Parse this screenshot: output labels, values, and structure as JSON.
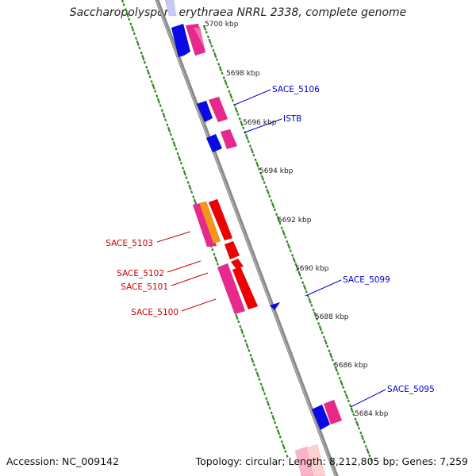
{
  "title": "Saccharopolyspora erythraea NRRL 2338, complete genome",
  "footer": {
    "accession": "Accession: NC_009142",
    "summary": "Topology: circular; Length: 8,212,805 bp; Genes: 7,259"
  },
  "colors": {
    "backbone": "#8a8a8a",
    "dots": "#2e8b1e",
    "blue_gene": "#0a0ae6",
    "pink_gene": "#e8288c",
    "red_gene": "#ee0000",
    "orange_gene": "#f7941d",
    "blue_label": "#0000cc",
    "red_label": "#cc0000"
  },
  "ticks": [
    {
      "label": "5700 kbp"
    },
    {
      "label": "5698 kbp"
    },
    {
      "label": "5696 kbp"
    },
    {
      "label": "5694 kbp"
    },
    {
      "label": "5692 kbp"
    },
    {
      "label": "5690 kbp"
    },
    {
      "label": "5688 kbp"
    },
    {
      "label": "5686 kbp"
    },
    {
      "label": "5684 kbp"
    }
  ],
  "gene_labels": [
    {
      "text": "SACE_5106",
      "strand": "blue"
    },
    {
      "text": "ISTB",
      "strand": "blue"
    },
    {
      "text": "SACE_5099",
      "strand": "blue"
    },
    {
      "text": "SACE_5095",
      "strand": "blue"
    },
    {
      "text": "SACE_5103",
      "strand": "red"
    },
    {
      "text": "SACE_5102",
      "strand": "red"
    },
    {
      "text": "SACE_5101",
      "strand": "red"
    },
    {
      "text": "SACE_5100",
      "strand": "red"
    }
  ]
}
